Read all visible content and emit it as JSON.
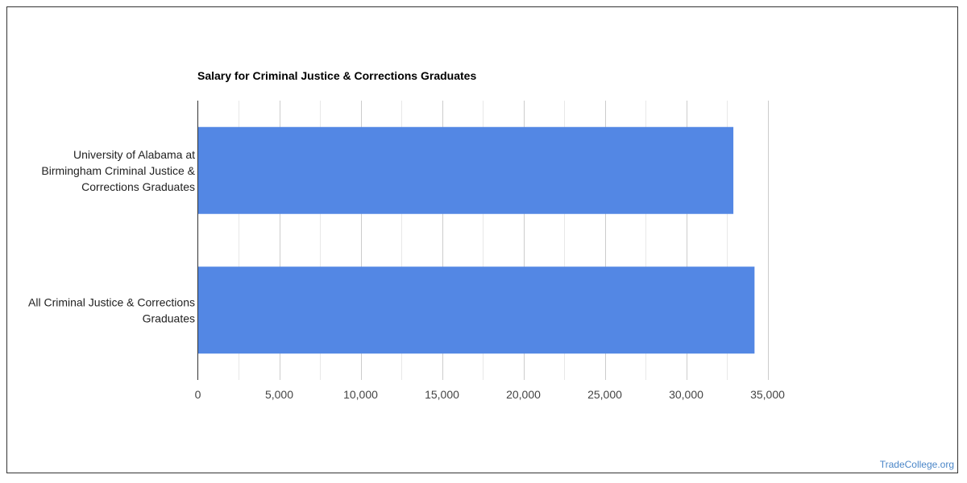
{
  "watermark": "TradeCollege.org",
  "colors": {
    "bar": "#5387e4",
    "grid_major": "#cccccc",
    "grid_minor": "#e8e8e8",
    "axis": "#333333"
  },
  "chart_data": {
    "type": "bar",
    "orientation": "horizontal",
    "title": "Salary for Criminal Justice & Corrections Graduates",
    "xlabel": "",
    "ylabel": "",
    "categories": [
      [
        "University of Alabama at",
        "Birmingham Criminal Justice &",
        "Corrections Graduates"
      ],
      [
        "All Criminal Justice & Corrections",
        "Graduates"
      ]
    ],
    "values": [
      32900,
      34200
    ],
    "xlim": [
      0,
      35000
    ],
    "x_ticks": [
      "0",
      "5,000",
      "10,000",
      "15,000",
      "20,000",
      "25,000",
      "30,000",
      "35,000"
    ],
    "grid": true,
    "legend": "none"
  }
}
